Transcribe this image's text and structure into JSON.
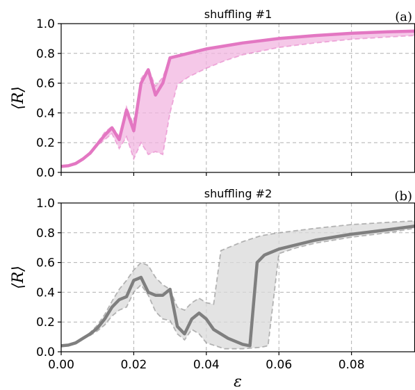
{
  "chart_data": [
    {
      "type": "line",
      "title": "shuffling #1",
      "panel_label": "(a)",
      "xlabel": "",
      "ylabel": "⟨R⟩",
      "xlim": [
        0.0,
        0.0975
      ],
      "ylim": [
        0.0,
        1.0
      ],
      "xticks": [
        0.0,
        0.02,
        0.04,
        0.06,
        0.08
      ],
      "yticks": [
        0.0,
        0.2,
        0.4,
        0.6,
        0.8,
        1.0
      ],
      "ytick_labels": [
        "0.0",
        "0.2",
        "0.4",
        "0.6",
        "0.8",
        "1.0"
      ],
      "grid": true,
      "color": "#e377c2",
      "band_color": "#f2b6e0",
      "series": [
        {
          "role": "mean",
          "x": [
            0.0,
            0.002,
            0.004,
            0.006,
            0.008,
            0.01,
            0.012,
            0.014,
            0.016,
            0.018,
            0.02,
            0.022,
            0.024,
            0.026,
            0.028,
            0.03,
            0.035,
            0.04,
            0.045,
            0.05,
            0.06,
            0.07,
            0.08,
            0.09,
            0.0975
          ],
          "y": [
            0.04,
            0.045,
            0.06,
            0.09,
            0.13,
            0.19,
            0.25,
            0.3,
            0.22,
            0.42,
            0.28,
            0.6,
            0.69,
            0.52,
            0.6,
            0.77,
            0.8,
            0.83,
            0.85,
            0.87,
            0.9,
            0.92,
            0.935,
            0.945,
            0.95
          ]
        },
        {
          "role": "upper",
          "x": [
            0.0,
            0.002,
            0.004,
            0.006,
            0.008,
            0.01,
            0.012,
            0.014,
            0.016,
            0.018,
            0.02,
            0.022,
            0.024,
            0.026,
            0.028,
            0.03,
            0.035,
            0.04,
            0.045,
            0.05,
            0.06,
            0.07,
            0.08,
            0.09,
            0.0975
          ],
          "y": [
            0.04,
            0.045,
            0.06,
            0.09,
            0.14,
            0.2,
            0.27,
            0.31,
            0.24,
            0.44,
            0.32,
            0.63,
            0.7,
            0.58,
            0.64,
            0.77,
            0.8,
            0.83,
            0.85,
            0.87,
            0.9,
            0.92,
            0.935,
            0.945,
            0.955
          ]
        },
        {
          "role": "lower",
          "x": [
            0.0,
            0.002,
            0.004,
            0.006,
            0.008,
            0.01,
            0.012,
            0.014,
            0.016,
            0.018,
            0.02,
            0.022,
            0.024,
            0.026,
            0.028,
            0.03,
            0.032,
            0.035,
            0.04,
            0.045,
            0.05,
            0.06,
            0.07,
            0.08,
            0.09,
            0.0975
          ],
          "y": [
            0.04,
            0.045,
            0.06,
            0.09,
            0.13,
            0.18,
            0.22,
            0.26,
            0.16,
            0.24,
            0.09,
            0.2,
            0.12,
            0.14,
            0.12,
            0.4,
            0.59,
            0.64,
            0.7,
            0.75,
            0.79,
            0.84,
            0.87,
            0.895,
            0.91,
            0.92
          ]
        }
      ]
    },
    {
      "type": "line",
      "title": "shuffling #2",
      "panel_label": "(b)",
      "xlabel": "ε",
      "ylabel": "⟨R⟩",
      "xlim": [
        0.0,
        0.0975
      ],
      "ylim": [
        0.0,
        1.0
      ],
      "xticks": [
        0.0,
        0.02,
        0.04,
        0.06,
        0.08
      ],
      "xtick_labels": [
        "0.00",
        "0.02",
        "0.04",
        "0.06",
        "0.08"
      ],
      "yticks": [
        0.0,
        0.2,
        0.4,
        0.6,
        0.8,
        1.0
      ],
      "ytick_labels": [
        "0.0",
        "0.2",
        "0.4",
        "0.6",
        "0.8",
        "1.0"
      ],
      "grid": true,
      "color": "#7f7f7f",
      "band_color": "#d9d9d9",
      "series": [
        {
          "role": "mean",
          "x": [
            0.0,
            0.002,
            0.004,
            0.006,
            0.008,
            0.01,
            0.012,
            0.014,
            0.016,
            0.018,
            0.02,
            0.022,
            0.024,
            0.026,
            0.028,
            0.03,
            0.032,
            0.034,
            0.036,
            0.038,
            0.04,
            0.042,
            0.046,
            0.05,
            0.052,
            0.054,
            0.056,
            0.06,
            0.07,
            0.08,
            0.09,
            0.0975
          ],
          "y": [
            0.04,
            0.045,
            0.06,
            0.09,
            0.12,
            0.16,
            0.22,
            0.3,
            0.35,
            0.37,
            0.48,
            0.5,
            0.4,
            0.38,
            0.38,
            0.42,
            0.17,
            0.12,
            0.22,
            0.26,
            0.22,
            0.15,
            0.09,
            0.05,
            0.04,
            0.6,
            0.65,
            0.69,
            0.75,
            0.79,
            0.82,
            0.845
          ]
        },
        {
          "role": "upper",
          "x": [
            0.0,
            0.002,
            0.004,
            0.006,
            0.008,
            0.01,
            0.012,
            0.014,
            0.016,
            0.018,
            0.02,
            0.022,
            0.024,
            0.026,
            0.028,
            0.03,
            0.032,
            0.034,
            0.036,
            0.038,
            0.04,
            0.042,
            0.044,
            0.046,
            0.05,
            0.055,
            0.06,
            0.07,
            0.08,
            0.09,
            0.0975
          ],
          "y": [
            0.04,
            0.045,
            0.06,
            0.09,
            0.13,
            0.18,
            0.25,
            0.34,
            0.42,
            0.48,
            0.55,
            0.6,
            0.58,
            0.5,
            0.45,
            0.42,
            0.3,
            0.28,
            0.33,
            0.36,
            0.33,
            0.32,
            0.68,
            0.7,
            0.74,
            0.78,
            0.8,
            0.83,
            0.855,
            0.87,
            0.88
          ]
        },
        {
          "role": "lower",
          "x": [
            0.0,
            0.002,
            0.004,
            0.006,
            0.008,
            0.01,
            0.012,
            0.014,
            0.016,
            0.018,
            0.02,
            0.022,
            0.024,
            0.026,
            0.028,
            0.03,
            0.032,
            0.034,
            0.036,
            0.038,
            0.04,
            0.045,
            0.05,
            0.055,
            0.057,
            0.06,
            0.065,
            0.07,
            0.08,
            0.09,
            0.0975
          ],
          "y": [
            0.04,
            0.045,
            0.06,
            0.09,
            0.11,
            0.14,
            0.18,
            0.24,
            0.28,
            0.3,
            0.4,
            0.45,
            0.38,
            0.27,
            0.22,
            0.21,
            0.12,
            0.08,
            0.15,
            0.12,
            0.06,
            0.02,
            0.02,
            0.03,
            0.04,
            0.66,
            0.7,
            0.73,
            0.77,
            0.8,
            0.83
          ]
        }
      ]
    }
  ]
}
